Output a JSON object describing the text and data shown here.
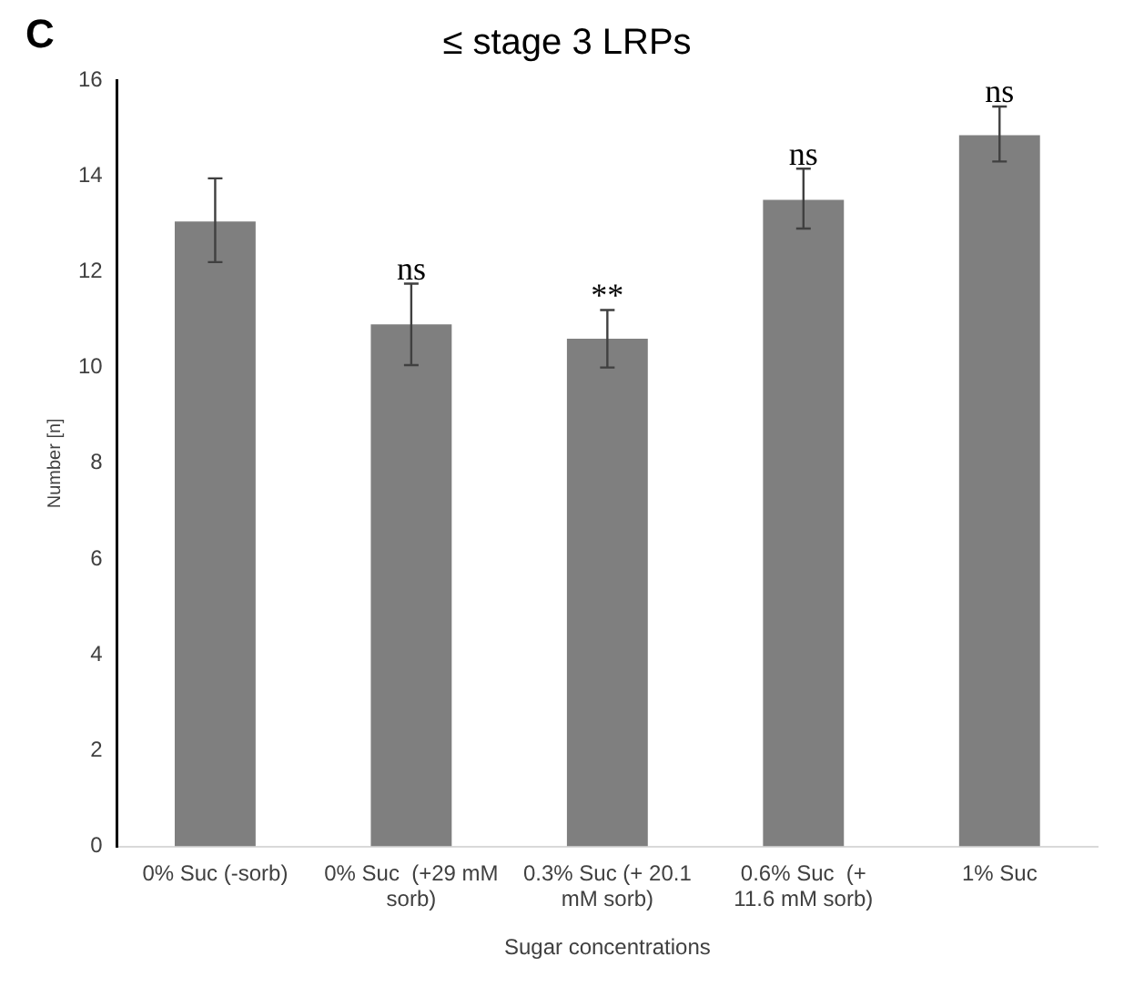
{
  "chart_data": {
    "type": "bar",
    "title": "≤ stage 3 LRPs",
    "xlabel": "Sugar concentrations",
    "ylabel": "Number [n]",
    "categories": [
      "0% Suc (-sorb)",
      "0% Suc  (+29 mM sorb)",
      "0.3% Suc (+ 20.1 mM sorb)",
      "0.6% Suc  (+ 11.6 mM sorb)",
      "1% Suc"
    ],
    "values": [
      13.05,
      10.9,
      10.6,
      13.5,
      14.85
    ],
    "errors": [
      [
        12.2,
        13.95
      ],
      [
        10.05,
        11.75
      ],
      [
        10.0,
        11.2
      ],
      [
        12.9,
        14.15
      ],
      [
        14.3,
        15.45
      ]
    ],
    "color": "#7f7f7f",
    "ylim": [
      0,
      16
    ],
    "yticks": [
      0,
      2,
      4,
      6,
      8,
      10,
      12,
      14,
      16
    ],
    "grid": false,
    "legend": false,
    "annotations": [
      "C",
      {
        "text": "ns",
        "x": "0% Suc  (+29 mM sorb)",
        "y": 11.75
      },
      {
        "text": "**",
        "x": "0.3% Suc (+ 20.1 mM sorb)",
        "y": 11.2
      },
      {
        "text": "ns",
        "x": "0.6% Suc  (+ 11.6 mM sorb)",
        "y": 14.15
      },
      {
        "text": "ns",
        "x": "1% Suc",
        "y": 15.45
      }
    ]
  }
}
